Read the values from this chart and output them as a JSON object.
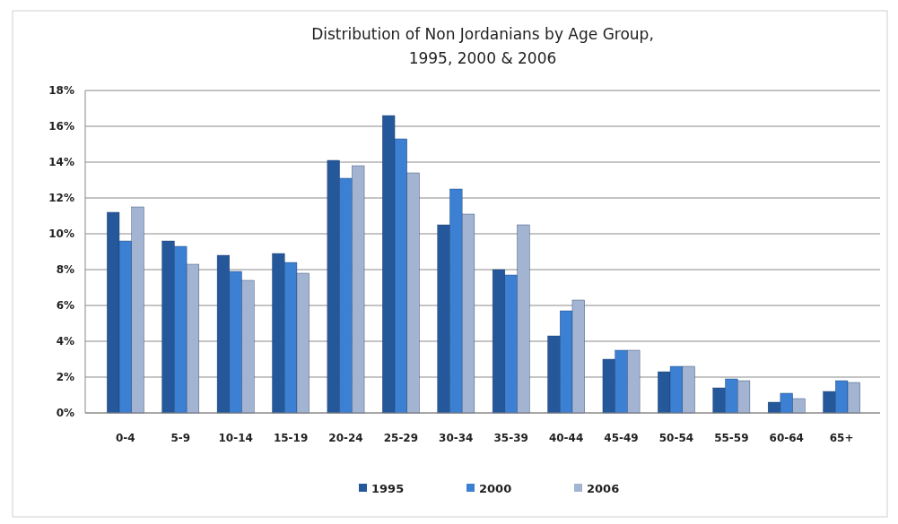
{
  "chart_data": {
    "type": "bar",
    "title": "Distribution of Non Jordanians by Age Group,\n1995, 2000 & 2006",
    "categories": [
      "0-4",
      "5-9",
      "10-14",
      "15-19",
      "20-24",
      "25-29",
      "30-34",
      "35-39",
      "40-44",
      "45-49",
      "50-54",
      "55-59",
      "60-64",
      "65+"
    ],
    "series": [
      {
        "name": "1995",
        "color": "#25589a",
        "values": [
          11.2,
          9.6,
          8.8,
          8.9,
          14.1,
          16.6,
          10.5,
          8.0,
          4.3,
          3.0,
          2.3,
          1.4,
          0.6,
          1.2
        ]
      },
      {
        "name": "2000",
        "color": "#3b80d2",
        "values": [
          9.6,
          9.3,
          7.9,
          8.4,
          13.1,
          15.3,
          12.5,
          7.7,
          5.7,
          3.5,
          2.6,
          1.9,
          1.1,
          1.8
        ]
      },
      {
        "name": "2006",
        "color": "#a3b4d3",
        "values": [
          11.5,
          8.3,
          7.4,
          7.8,
          13.8,
          13.4,
          11.1,
          10.5,
          6.3,
          3.5,
          2.6,
          1.8,
          0.8,
          1.7
        ]
      }
    ],
    "ylim": [
      0,
      18
    ],
    "yticks": [
      {
        "value": 0,
        "label": "0%"
      },
      {
        "value": 2,
        "label": "2%"
      },
      {
        "value": 4,
        "label": "4%"
      },
      {
        "value": 6,
        "label": "6%"
      },
      {
        "value": 8,
        "label": "8%"
      },
      {
        "value": 10,
        "label": "10%"
      },
      {
        "value": 12,
        "label": "12%"
      },
      {
        "value": 14,
        "label": "14%"
      },
      {
        "value": 16,
        "label": "16%"
      },
      {
        "value": 18,
        "label": "18%"
      }
    ],
    "grid": "y",
    "legend": "bottom"
  }
}
